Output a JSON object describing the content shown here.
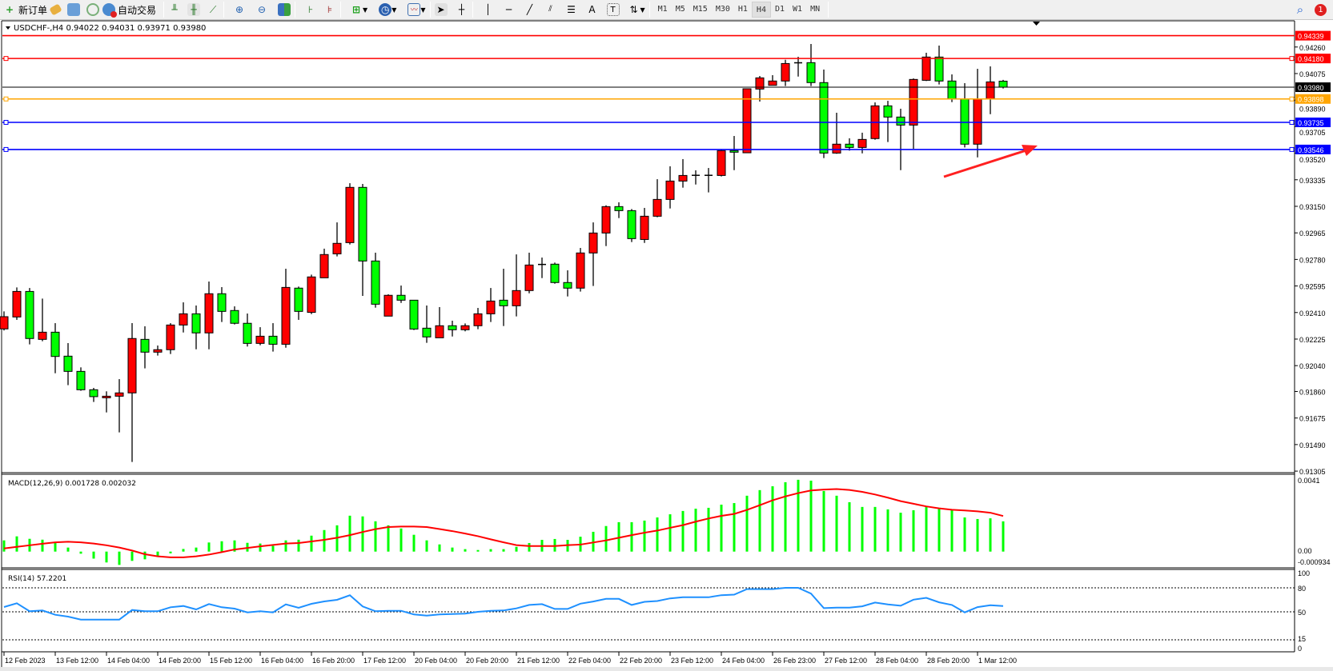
{
  "toolbar": {
    "new_order": "新订单",
    "auto_trading": "自动交易",
    "timeframes": [
      "M1",
      "M5",
      "M15",
      "M30",
      "H1",
      "H4",
      "D1",
      "W1",
      "MN"
    ],
    "active_timeframe": "H4",
    "notification_count": "1",
    "icons": [
      "new-order-icon",
      "market-watch-icon",
      "data-window-icon",
      "navigator-icon",
      "signals-icon",
      "auto-trading-icon",
      "bar-chart-icon",
      "candlestick-icon",
      "line-chart-icon",
      "zoom-in-icon",
      "zoom-out-icon",
      "tile-windows-icon",
      "auto-scroll-icon",
      "chart-shift-icon",
      "add-indicator-icon",
      "periods-clock-icon",
      "templates-icon",
      "cursor-icon",
      "crosshair-icon",
      "vertical-line-icon",
      "horizontal-line-icon",
      "trendline-icon",
      "equidistant-channel-icon",
      "fibonacci-icon",
      "text-icon",
      "text-label-icon",
      "arrows-icon",
      "search-icon",
      "notification-icon"
    ]
  },
  "chart": {
    "header": "USDCHF-,H4  0.94022 0.94031 0.93971 0.93980",
    "colors": {
      "bull": "#ff0000",
      "bear": "#00ff00",
      "outline": "#000000",
      "rsi": "#1e90ff",
      "signal": "#ff0000",
      "histogram": "#00ff00"
    },
    "levels": [
      {
        "price": "0.94339",
        "color": "#ff0000",
        "markers": false
      },
      {
        "price": "0.94180",
        "color": "#ff0000",
        "markers": true
      },
      {
        "price": "0.93980",
        "color": "#000000",
        "markers": false
      },
      {
        "price": "0.93898",
        "color": "#ffa500",
        "markers": true
      },
      {
        "price": "0.93735",
        "color": "#0000ff",
        "markers": true
      },
      {
        "price": "0.93546",
        "color": "#0000ff",
        "markers": true
      }
    ],
    "price_ticks": [
      "0.94260",
      "0.94075",
      "0.93890",
      "0.93705",
      "0.93520",
      "0.93335",
      "0.93150",
      "0.92965",
      "0.92780",
      "0.92595",
      "0.92410",
      "0.92225",
      "0.92040",
      "0.91860",
      "0.91675",
      "0.91490",
      "0.91305"
    ],
    "date_labels": [
      "12 Feb 2023",
      "13 Feb 12:00",
      "14 Feb 04:00",
      "14 Feb 20:00",
      "15 Feb 12:00",
      "16 Feb 04:00",
      "16 Feb 20:00",
      "17 Feb 12:00",
      "20 Feb 04:00",
      "20 Feb 20:00",
      "21 Feb 12:00",
      "22 Feb 04:00",
      "22 Feb 20:00",
      "23 Feb 12:00",
      "24 Feb 04:00",
      "26 Feb 23:00",
      "27 Feb 12:00",
      "28 Feb 04:00",
      "28 Feb 20:00",
      "1 Mar 12:00"
    ],
    "annotation": "red-arrow-pointing-up-right"
  },
  "chart_data": [
    {
      "type": "candlestick",
      "symbol": "USDCHF-",
      "timeframe": "H4",
      "ylim": [
        0.91305,
        0.94339
      ],
      "ohlc": [
        [
          0.92296,
          0.92418,
          0.92285,
          0.92381
        ],
        [
          0.92379,
          0.92585,
          0.92359,
          0.92557
        ],
        [
          0.92557,
          0.92581,
          0.92188,
          0.92229
        ],
        [
          0.92223,
          0.92507,
          0.9221,
          0.92273
        ],
        [
          0.92273,
          0.92336,
          0.91987,
          0.92104
        ],
        [
          0.92106,
          0.92197,
          0.91904,
          0.92
        ],
        [
          0.92,
          0.92028,
          0.91865,
          0.91872
        ],
        [
          0.91872,
          0.91885,
          0.91787,
          0.91824
        ],
        [
          0.91816,
          0.91861,
          0.91714,
          0.91827
        ],
        [
          0.91827,
          0.91946,
          0.91575,
          0.9185
        ],
        [
          0.9185,
          0.92336,
          0.91369,
          0.92229
        ],
        [
          0.92223,
          0.92314,
          0.92021,
          0.92134
        ],
        [
          0.92134,
          0.9218,
          0.9211,
          0.92151
        ],
        [
          0.92151,
          0.92336,
          0.92121,
          0.92323
        ],
        [
          0.92323,
          0.92481,
          0.92271,
          0.92401
        ],
        [
          0.92401,
          0.92459,
          0.92154,
          0.92268
        ],
        [
          0.92268,
          0.92626,
          0.92154,
          0.92541
        ],
        [
          0.92541,
          0.92587,
          0.92344,
          0.92418
        ],
        [
          0.92424,
          0.92453,
          0.92327,
          0.92335
        ],
        [
          0.92335,
          0.92403,
          0.92173,
          0.92195
        ],
        [
          0.92195,
          0.92308,
          0.92182,
          0.92245
        ],
        [
          0.92245,
          0.92336,
          0.92138,
          0.92189
        ],
        [
          0.92189,
          0.92715,
          0.92165,
          0.92585
        ],
        [
          0.9258,
          0.92591,
          0.92359,
          0.92418
        ],
        [
          0.92411,
          0.92674,
          0.92399,
          0.92658
        ],
        [
          0.92652,
          0.92855,
          0.92652,
          0.92814
        ],
        [
          0.92819,
          0.93038,
          0.92801,
          0.92892
        ],
        [
          0.92897,
          0.93311,
          0.92884,
          0.93282
        ],
        [
          0.93282,
          0.93306,
          0.92526,
          0.92769
        ],
        [
          0.92769,
          0.92827,
          0.92444,
          0.92468
        ],
        [
          0.92385,
          0.92537,
          0.92385,
          0.9253
        ],
        [
          0.9253,
          0.92598,
          0.92477,
          0.92496
        ],
        [
          0.92496,
          0.92498,
          0.92288,
          0.92295
        ],
        [
          0.92301,
          0.92459,
          0.92199,
          0.9224
        ],
        [
          0.92234,
          0.92448,
          0.92234,
          0.92318
        ],
        [
          0.92318,
          0.92353,
          0.92243,
          0.9229
        ],
        [
          0.9229,
          0.92334,
          0.92279,
          0.92318
        ],
        [
          0.92318,
          0.92442,
          0.92294,
          0.92401
        ],
        [
          0.92401,
          0.92581,
          0.92344,
          0.9249
        ],
        [
          0.92496,
          0.92715,
          0.92316,
          0.92457
        ],
        [
          0.92457,
          0.92815,
          0.92383,
          0.92563
        ],
        [
          0.92563,
          0.92827,
          0.92544,
          0.92741
        ],
        [
          0.92745,
          0.92793,
          0.9265,
          0.92744
        ],
        [
          0.92747,
          0.92758,
          0.92611,
          0.92619
        ],
        [
          0.92619,
          0.92704,
          0.92522,
          0.9258
        ],
        [
          0.9258,
          0.9286,
          0.92556,
          0.92825
        ],
        [
          0.92825,
          0.93038,
          0.92595,
          0.92964
        ],
        [
          0.92964,
          0.93157,
          0.92873,
          0.93148
        ],
        [
          0.93148,
          0.93178,
          0.93068,
          0.9312
        ],
        [
          0.9312,
          0.93131,
          0.92901,
          0.92925
        ],
        [
          0.92919,
          0.93139,
          0.92895,
          0.93081
        ],
        [
          0.93081,
          0.93339,
          0.93074,
          0.93198
        ],
        [
          0.93198,
          0.93429,
          0.93135,
          0.93326
        ],
        [
          0.93326,
          0.93479,
          0.9328,
          0.93365
        ],
        [
          0.93365,
          0.93401,
          0.93302,
          0.93366
        ],
        [
          0.93365,
          0.93417,
          0.93247,
          0.93366
        ],
        [
          0.93365,
          0.93542,
          0.93358,
          0.93538
        ],
        [
          0.93538,
          0.9364,
          0.93402,
          0.93527
        ],
        [
          0.93523,
          0.93971,
          0.93523,
          0.93969
        ],
        [
          0.93967,
          0.94058,
          0.9388,
          0.94045
        ],
        [
          0.93993,
          0.94064,
          0.93993,
          0.94023
        ],
        [
          0.94023,
          0.94171,
          0.93988,
          0.94145
        ],
        [
          0.94149,
          0.94192,
          0.94054,
          0.9415
        ],
        [
          0.94151,
          0.94281,
          0.93988,
          0.94012
        ],
        [
          0.94012,
          0.94103,
          0.93486,
          0.93521
        ],
        [
          0.93521,
          0.93802,
          0.93516,
          0.93583
        ],
        [
          0.93583,
          0.93624,
          0.93538,
          0.9356
        ],
        [
          0.9356,
          0.93663,
          0.93519,
          0.93616
        ],
        [
          0.93622,
          0.93874,
          0.93614,
          0.9385
        ],
        [
          0.9385,
          0.93885,
          0.93598,
          0.93772
        ],
        [
          0.93772,
          0.9383,
          0.93402,
          0.93716
        ],
        [
          0.93716,
          0.94041,
          0.93551,
          0.94034
        ],
        [
          0.94028,
          0.9422,
          0.94023,
          0.9419
        ],
        [
          0.9419,
          0.9427,
          0.93999,
          0.94023
        ],
        [
          0.94023,
          0.94069,
          0.93876,
          0.93897
        ],
        [
          0.93897,
          0.94008,
          0.9356,
          0.93583
        ],
        [
          0.93583,
          0.94108,
          0.93491,
          0.93897
        ],
        [
          0.93897,
          0.94125,
          0.93792,
          0.94017
        ],
        [
          0.94022,
          0.94031,
          0.93971,
          0.9398
        ]
      ]
    },
    {
      "type": "bar+line",
      "title": "MACD(12,26,9) 0.001728 0.002032",
      "ylim": [
        -0.000934,
        0.0041
      ],
      "ytick_labels": [
        "0.0041",
        "0.00",
        "-0.000934"
      ],
      "histogram": [
        0.00064,
        0.00087,
        0.00073,
        0.00068,
        0.00049,
        0.00023,
        -0.00012,
        -0.0004,
        -0.00062,
        -0.00076,
        -0.00053,
        -0.00044,
        -0.00024,
        -0.0001,
        0.00015,
        0.00023,
        0.00052,
        0.00059,
        0.00064,
        0.0005,
        0.00046,
        0.00033,
        0.00064,
        0.00068,
        0.00091,
        0.00123,
        0.0015,
        0.00205,
        0.00201,
        0.00173,
        0.0015,
        0.00132,
        0.00096,
        0.00064,
        0.00041,
        0.00023,
        0.00014,
        9e-05,
        0.00014,
        0.00014,
        0.00027,
        0.00049,
        0.00067,
        0.00072,
        0.00067,
        0.00085,
        0.00113,
        0.00146,
        0.00168,
        0.00168,
        0.00177,
        0.00195,
        0.00213,
        0.00232,
        0.00245,
        0.0025,
        0.00268,
        0.00277,
        0.00319,
        0.00351,
        0.00373,
        0.00396,
        0.0041,
        0.00405,
        0.00346,
        0.00319,
        0.00282,
        0.00255,
        0.00255,
        0.00241,
        0.00222,
        0.00236,
        0.00255,
        0.0025,
        0.00236,
        0.00195,
        0.00186,
        0.0019,
        0.001728
      ],
      "signal": [
        0.00018,
        0.00027,
        0.00036,
        0.00045,
        0.00053,
        0.00056,
        0.00053,
        0.00046,
        0.00036,
        0.00023,
        6e-05,
        -0.00015,
        -0.00027,
        -0.00033,
        -0.00033,
        -0.00027,
        -0.00017,
        -3e-05,
        0.00012,
        0.00021,
        0.0003,
        0.00038,
        0.00046,
        0.00049,
        0.00058,
        0.00067,
        0.00079,
        0.00094,
        0.00112,
        0.00128,
        0.0014,
        0.00143,
        0.00143,
        0.0014,
        0.00129,
        0.00117,
        0.00103,
        0.00088,
        0.0007,
        0.00053,
        0.00037,
        0.00032,
        0.00032,
        0.00032,
        0.00037,
        0.0004,
        0.00052,
        0.00064,
        0.00079,
        0.00094,
        0.00108,
        0.0012,
        0.00136,
        0.00151,
        0.00171,
        0.00189,
        0.00204,
        0.00215,
        0.00238,
        0.00265,
        0.00293,
        0.00315,
        0.00334,
        0.00349,
        0.00354,
        0.00357,
        0.00352,
        0.00341,
        0.00326,
        0.00308,
        0.00288,
        0.00273,
        0.00258,
        0.00247,
        0.00239,
        0.00235,
        0.0023,
        0.00222,
        0.002032
      ]
    },
    {
      "type": "line",
      "title": "RSI(14) 57.2201",
      "ylim": [
        0,
        100
      ],
      "levels": [
        80,
        50,
        15
      ],
      "ytick_labels": [
        "100",
        "80",
        "50",
        "15",
        "0"
      ],
      "values": [
        56,
        60.7,
        50.7,
        51.7,
        46.3,
        44,
        40.3,
        40.3,
        40.3,
        40.3,
        52.3,
        50.7,
        50.7,
        55.7,
        57.3,
        53,
        59.7,
        55.7,
        54,
        49.3,
        50.7,
        49.3,
        59.3,
        55,
        60,
        63,
        65,
        70.7,
        56.7,
        50.7,
        51.3,
        51.3,
        46.7,
        45.3,
        46.7,
        47.3,
        47.7,
        50,
        51.3,
        51.7,
        54.3,
        58.6,
        59.6,
        53.6,
        53.6,
        60.2,
        62.9,
        66.2,
        66.2,
        58.6,
        62.5,
        63.5,
        66.8,
        68.2,
        68.2,
        68.2,
        70.8,
        71.5,
        78.4,
        78.4,
        78.4,
        80,
        80,
        72.8,
        54.6,
        55.3,
        55.3,
        56.9,
        61.6,
        59.2,
        57.6,
        65.2,
        67.5,
        61.9,
        58.6,
        49.3,
        55.9,
        58.3,
        57.2201
      ]
    }
  ]
}
